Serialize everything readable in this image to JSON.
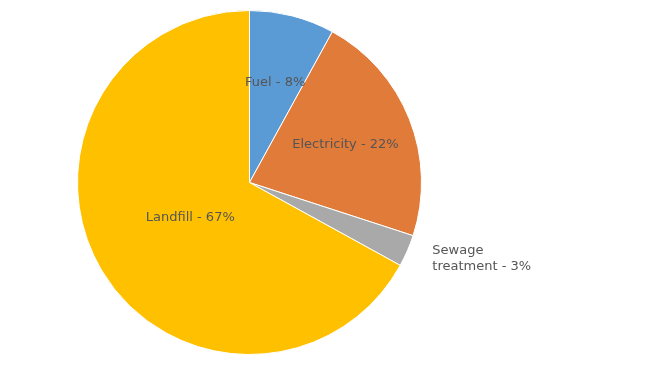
{
  "chart_data": {
    "type": "pie",
    "categories": [
      "Fuel",
      "Electricity",
      "Sewage treatment",
      "Landfill"
    ],
    "values": [
      8,
      22,
      3,
      67
    ],
    "value_labels": [
      "Fuel - 8%",
      "Electricity - 22%",
      "Sewage\ntreatment - 3%",
      "Landfill - 67%"
    ],
    "colors": [
      "#5B9BD5",
      "#E07B39",
      "#A9A9A9",
      "#FFC000"
    ],
    "data_labels": true,
    "legend": false
  }
}
